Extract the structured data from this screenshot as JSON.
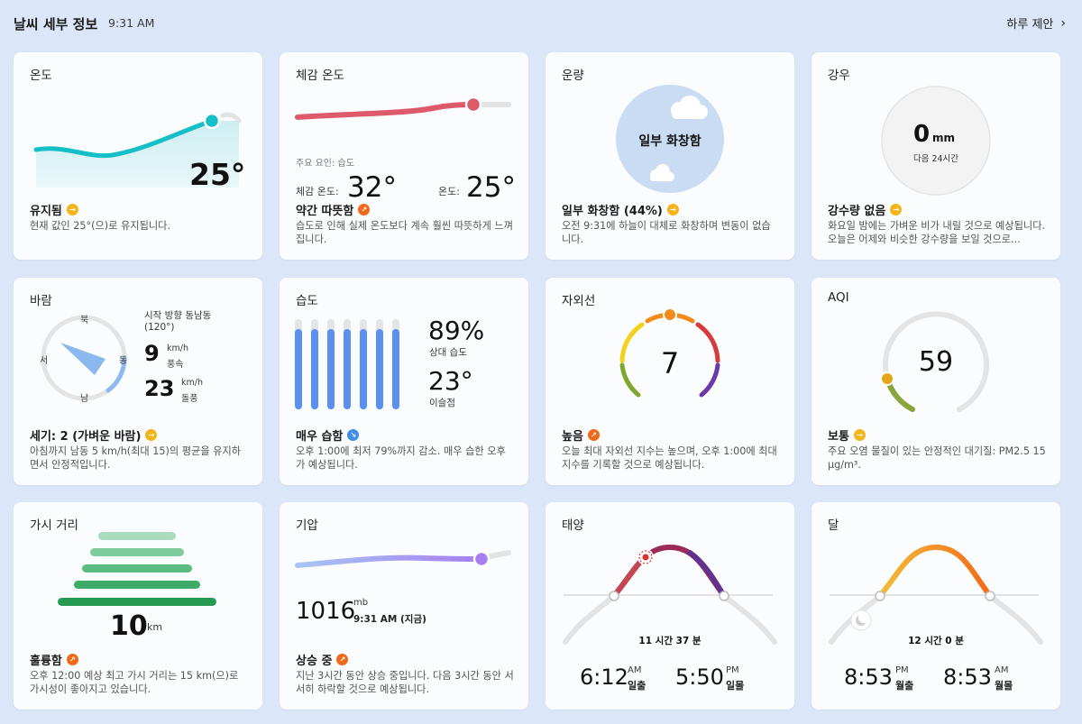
{
  "header": {
    "title": "날씨 세부 정보",
    "time": "9:31 AM",
    "suggest_label": "하루 제안",
    "chevron": "›"
  },
  "temperature": {
    "title": "온도",
    "value": "25°",
    "summary": "유지됨",
    "description": "현재 값인 25°(으)로 유지됩니다."
  },
  "feels_like": {
    "title": "체감 온도",
    "factor": "주요 요인: 습도",
    "feels_label": "체감 온도:",
    "feels_value": "32°",
    "temp_label": "온도:",
    "temp_value": "25°",
    "summary": "약간 따뜻함",
    "description": "습도로 인해 실제 온도보다 계속 훨씬 따뜻하게 느껴집니다."
  },
  "cloud": {
    "title": "운량",
    "center_label": "일부 화창함",
    "summary": "일부 화창함 (44%)",
    "description": "오전 9:31에 하늘이 대체로 화창하며 변동이 없습니다."
  },
  "rain": {
    "title": "강우",
    "value": "0",
    "unit": "mm",
    "caption": "다음 24시간",
    "summary": "강수량 없음",
    "description": "화요일 밤에는 가벼운 비가 내릴 것으로 예상됩니다. 오늘은 어제와 비슷한 강수량을 보일 것으로..."
  },
  "wind": {
    "title": "바람",
    "n": "북",
    "e": "동",
    "s": "남",
    "w": "서",
    "direction": "시작 방향 동남동",
    "degrees": "(120°)",
    "speed": "9",
    "speed_unit": "km/h",
    "speed_label": "풍속",
    "gust": "23",
    "gust_unit": "km/h",
    "gust_label": "돌풍",
    "summary": "세기: 2 (가벼운 바람)",
    "description": "아침까지 남동 5 km/h(최대 15)의 평균을 유지하면서 안정적입니다."
  },
  "humidity": {
    "title": "습도",
    "value": "89%",
    "value_label": "상대 습도",
    "dew": "23°",
    "dew_label": "이슬점",
    "bars": [
      0.89,
      0.89,
      0.89,
      0.89,
      0.89,
      0.89,
      0.89
    ],
    "summary": "매우 습함",
    "description": "오후 1:00에 최저 79%까지 감소. 매우 습한 오후가 예상됩니다."
  },
  "uv": {
    "title": "자외선",
    "value": "7",
    "summary": "높음",
    "description": "오늘 최대 자외선 지수는 높으며, 오후 1:00에 최대 지수를 기록할 것으로 예상됩니다."
  },
  "aqi": {
    "title": "AQI",
    "value": "59",
    "summary": "보통",
    "description": "주요 오염 물질이 있는 안정적인 대기질: PM2.5 15 μg/m³."
  },
  "visibility": {
    "title": "가시 거리",
    "value": "10",
    "unit": "km",
    "summary": "훌륭함",
    "description": "오후 12:00 예상 최고 가시 거리는 15 km(으)로 가시성이 좋아지고 있습니다."
  },
  "pressure": {
    "title": "기압",
    "value": "1016",
    "unit": "mb",
    "time": "9:31 AM (지금)",
    "summary": "상승 중",
    "description": "지난 3시간 동안 상승 중입니다. 다음 3시간 동안 서서히 하락할 것으로 예상됩니다."
  },
  "sun": {
    "title": "태양",
    "duration": "11 시간 37 분",
    "rise_time": "6:12",
    "rise_ampm": "AM",
    "rise_label": "일출",
    "set_time": "5:50",
    "set_ampm": "PM",
    "set_label": "일몰"
  },
  "moon": {
    "title": "달",
    "duration": "12 시간 0 분",
    "rise_time": "8:53",
    "rise_ampm": "PM",
    "rise_label": "월출",
    "set_time": "8:53",
    "set_ampm": "AM",
    "set_label": "월몰"
  }
}
